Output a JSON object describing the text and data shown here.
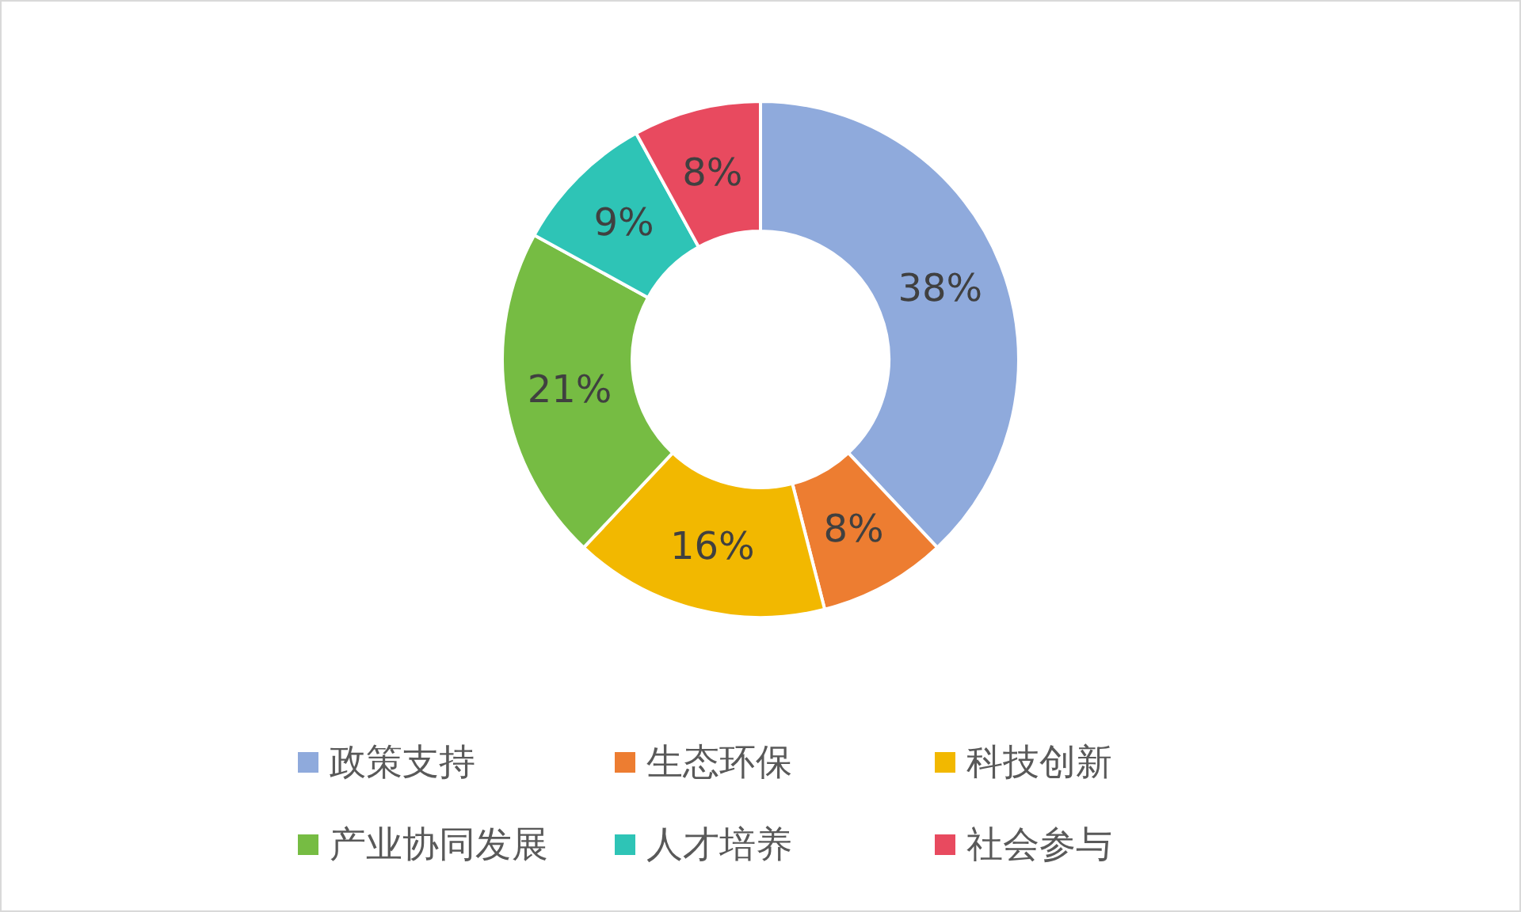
{
  "chart_data": {
    "type": "donut",
    "categories": [
      "政策支持",
      "生态环保",
      "科技创新",
      "产业协同发展",
      "人才培养",
      "社会参与"
    ],
    "values": [
      38,
      8,
      16,
      21,
      9,
      8
    ],
    "colors": [
      "#8faadc",
      "#ed7d31",
      "#f2b800",
      "#76bc43",
      "#2ec4b6",
      "#e84a5f"
    ],
    "value_labels": [
      "38%",
      "8%",
      "16%",
      "21%",
      "9%",
      "8%"
    ],
    "legend": "bottom"
  }
}
